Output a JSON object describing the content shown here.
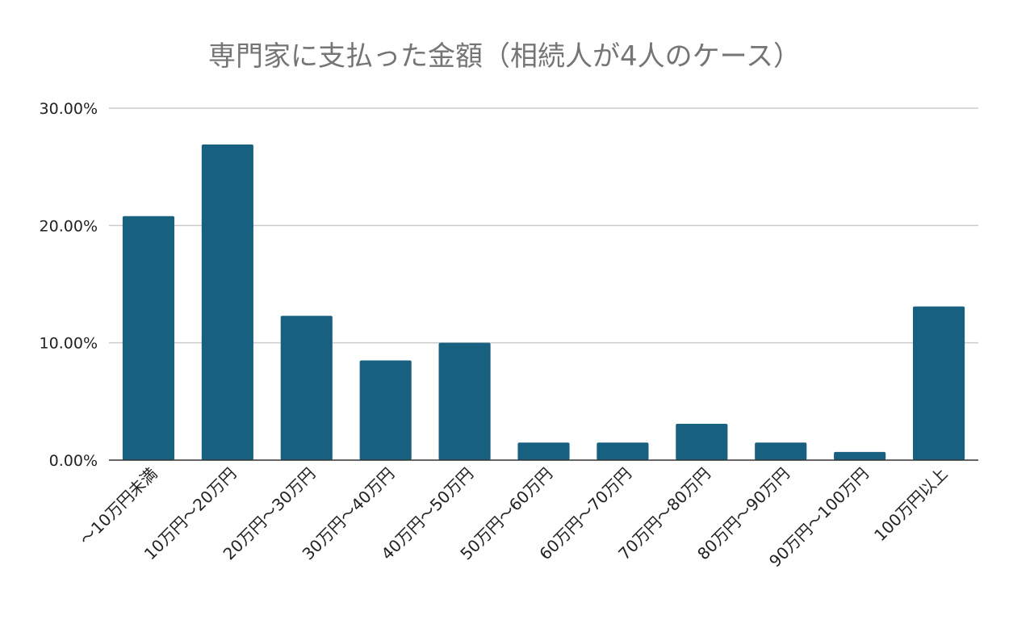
{
  "chart_data": {
    "type": "bar",
    "title": "専門家に支払った金額（相続人が4人のケース）",
    "xlabel": "",
    "ylabel": "",
    "categories": [
      "～10万円未満",
      "10万円～20万円",
      "20万円～30万円",
      "30万円～40万円",
      "40万円～50万円",
      "50万円～60万円",
      "60万円～70万円",
      "70万円～80万円",
      "80万円～90万円",
      "90万円～100万円",
      "100万円以上"
    ],
    "values": [
      20.8,
      26.9,
      12.3,
      8.5,
      10.0,
      1.5,
      1.5,
      3.1,
      1.5,
      0.7,
      13.1
    ],
    "ylim": [
      0,
      30
    ],
    "yticks": [
      0,
      10,
      20,
      30
    ],
    "ytick_labels": [
      "0.00%",
      "10.00%",
      "20.00%",
      "30.00%"
    ],
    "grid": true,
    "legend": "none",
    "colors": {
      "bar": "#17607f",
      "grid": "#cccccc",
      "axis": "#333333",
      "title": "#757575",
      "text": "#222222"
    }
  }
}
